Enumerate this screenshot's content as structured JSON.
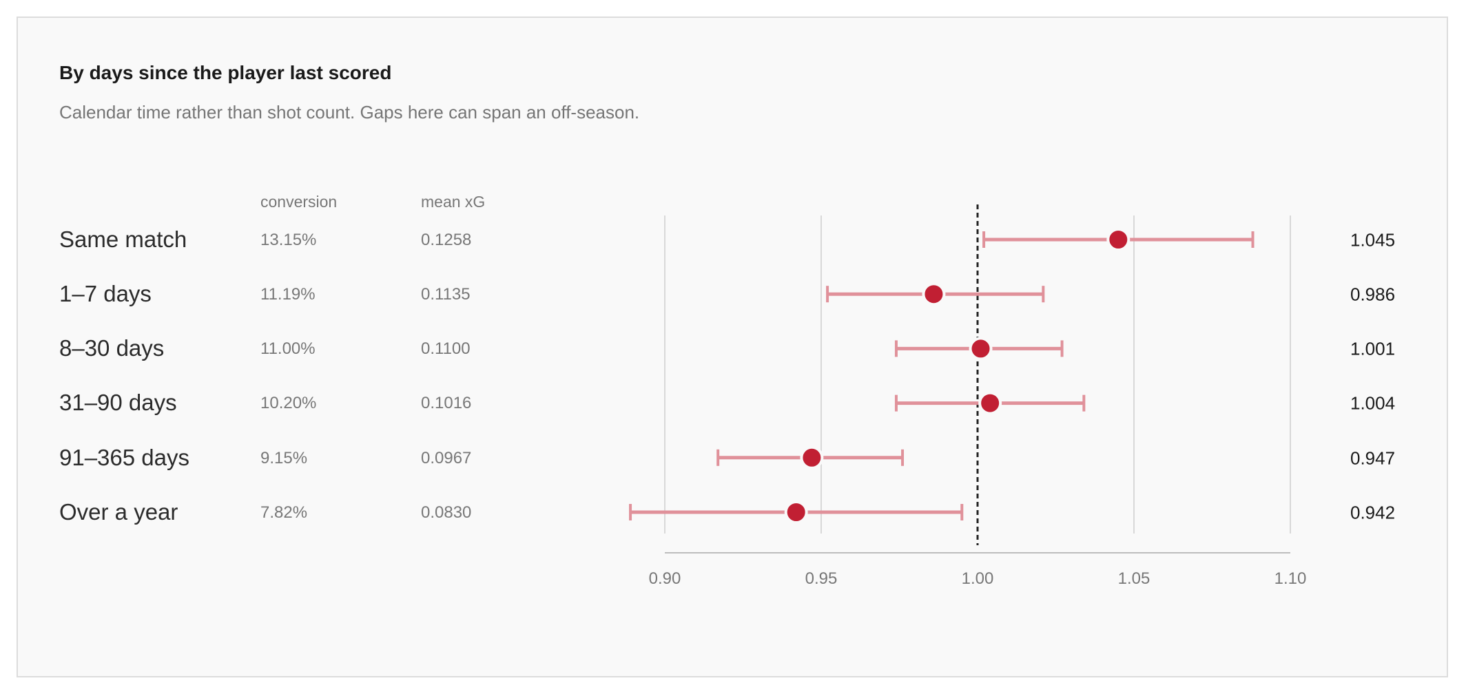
{
  "title": "By days since the player last scored",
  "subtitle": "Calendar time rather than shot count. Gaps here can span an off-season.",
  "columns": {
    "conversion": "conversion",
    "mean_xg": "mean xG"
  },
  "colors": {
    "point": "#c11f33",
    "interval": "#e0919a",
    "reference_line": "#222222",
    "grid": "#d8d8d8",
    "axis": "#bdbdbd"
  },
  "rows": [
    {
      "label": "Same match",
      "conversion": "13.15%",
      "mean_xg": "0.1258",
      "ratio_label": "1.045"
    },
    {
      "label": "1–7 days",
      "conversion": "11.19%",
      "mean_xg": "0.1135",
      "ratio_label": "0.986"
    },
    {
      "label": "8–30 days",
      "conversion": "11.00%",
      "mean_xg": "0.1100",
      "ratio_label": "1.001"
    },
    {
      "label": "31–90 days",
      "conversion": "10.20%",
      "mean_xg": "0.1016",
      "ratio_label": "1.004"
    },
    {
      "label": "91–365 days",
      "conversion": "9.15%",
      "mean_xg": "0.0967",
      "ratio_label": "0.947"
    },
    {
      "label": "Over a year",
      "conversion": "7.82%",
      "mean_xg": "0.0830",
      "ratio_label": "0.942"
    }
  ],
  "chart_data": {
    "type": "scatter",
    "categories": [
      "Same match",
      "1–7 days",
      "8–30 days",
      "31–90 days",
      "91–365 days",
      "Over a year"
    ],
    "series": [
      {
        "values": [
          1.045,
          0.986,
          1.001,
          1.004,
          0.947,
          0.942
        ],
        "lower": [
          1.002,
          0.952,
          0.974,
          0.974,
          0.917,
          0.889
        ],
        "upper": [
          1.088,
          1.021,
          1.027,
          1.034,
          0.976,
          0.995
        ]
      }
    ],
    "xlim": [
      0.9,
      1.1
    ],
    "xticks": [
      0.9,
      0.95,
      1.0,
      1.05,
      1.1
    ],
    "tick_labels": [
      "0.90",
      "0.95",
      "1.00",
      "1.05",
      "1.10"
    ],
    "reference_line": 1.0,
    "grid": true
  }
}
